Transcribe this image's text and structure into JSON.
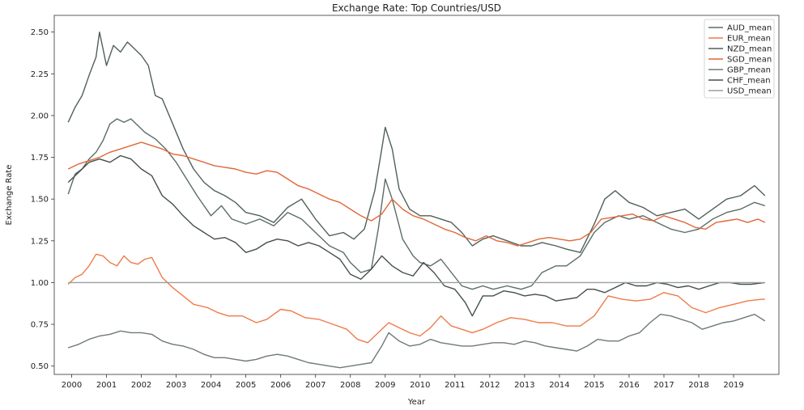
{
  "chart_data": {
    "type": "line",
    "title": "Exchange Rate: Top Countries/USD",
    "xlabel": "Year",
    "ylabel": "Exchange Rate",
    "xlim": [
      1999.5,
      2020.3
    ],
    "ylim": [
      0.45,
      2.6
    ],
    "xticks": [
      "2000",
      "2001",
      "2002",
      "2003",
      "2004",
      "2005",
      "2006",
      "2007",
      "2008",
      "2009",
      "2010",
      "2011",
      "2012",
      "2013",
      "2014",
      "2015",
      "2016",
      "2017",
      "2018",
      "2019"
    ],
    "yticks": [
      "0.50",
      "0.75",
      "1.00",
      "1.25",
      "1.50",
      "1.75",
      "2.00",
      "2.25",
      "2.50"
    ],
    "grid": false,
    "legend_position": "top-right",
    "series": [
      {
        "name": "AUD_mean",
        "color": "#5a6e66",
        "x": [
          1999.9,
          2000.1,
          2000.3,
          2000.5,
          2000.7,
          2000.9,
          2001.1,
          2001.3,
          2001.5,
          2001.7,
          2001.9,
          2002.1,
          2002.4,
          2002.7,
          2003.0,
          2003.3,
          2003.6,
          2004.0,
          2004.3,
          2004.6,
          2005.0,
          2005.4,
          2005.8,
          2006.2,
          2006.6,
          2007.0,
          2007.4,
          2007.8,
          2008.0,
          2008.3,
          2008.6,
          2008.8,
          2009.0,
          2009.2,
          2009.5,
          2009.8,
          2010.0,
          2010.3,
          2010.6,
          2010.9,
          2011.2,
          2011.5,
          2011.8,
          2012.1,
          2012.5,
          2012.9,
          2013.2,
          2013.5,
          2013.9,
          2014.2,
          2014.6,
          2015.0,
          2015.3,
          2015.7,
          2016.0,
          2016.4,
          2016.8,
          2017.2,
          2017.6,
          2018.0,
          2018.4,
          2018.8,
          2019.2,
          2019.6,
          2019.9
        ],
        "values": [
          1.53,
          1.65,
          1.68,
          1.74,
          1.78,
          1.85,
          1.95,
          1.98,
          1.96,
          1.98,
          1.94,
          1.9,
          1.86,
          1.8,
          1.72,
          1.62,
          1.52,
          1.4,
          1.46,
          1.38,
          1.35,
          1.38,
          1.34,
          1.42,
          1.38,
          1.3,
          1.22,
          1.18,
          1.12,
          1.06,
          1.08,
          1.32,
          1.62,
          1.5,
          1.26,
          1.16,
          1.12,
          1.1,
          1.14,
          1.06,
          0.98,
          0.96,
          0.98,
          0.96,
          0.98,
          0.96,
          0.98,
          1.06,
          1.1,
          1.1,
          1.16,
          1.3,
          1.36,
          1.4,
          1.38,
          1.4,
          1.36,
          1.32,
          1.3,
          1.32,
          1.38,
          1.42,
          1.44,
          1.48,
          1.46
        ]
      },
      {
        "name": "EUR_mean",
        "color": "#ee7b4a",
        "x": [
          1999.9,
          2000.1,
          2000.3,
          2000.5,
          2000.7,
          2000.9,
          2001.1,
          2001.3,
          2001.5,
          2001.7,
          2001.9,
          2002.1,
          2002.3,
          2002.6,
          2002.9,
          2003.2,
          2003.5,
          2003.9,
          2004.2,
          2004.5,
          2004.9,
          2005.3,
          2005.6,
          2006.0,
          2006.3,
          2006.7,
          2007.1,
          2007.5,
          2007.9,
          2008.2,
          2008.5,
          2008.8,
          2009.1,
          2009.4,
          2009.7,
          2010.0,
          2010.3,
          2010.6,
          2010.9,
          2011.2,
          2011.5,
          2011.8,
          2012.2,
          2012.6,
          2013.0,
          2013.4,
          2013.8,
          2014.2,
          2014.6,
          2015.0,
          2015.4,
          2015.8,
          2016.2,
          2016.6,
          2017.0,
          2017.4,
          2017.8,
          2018.2,
          2018.6,
          2019.0,
          2019.4,
          2019.8,
          2019.9
        ],
        "values": [
          0.99,
          1.03,
          1.05,
          1.1,
          1.17,
          1.16,
          1.12,
          1.1,
          1.16,
          1.12,
          1.11,
          1.14,
          1.15,
          1.03,
          0.97,
          0.92,
          0.87,
          0.85,
          0.82,
          0.8,
          0.8,
          0.76,
          0.78,
          0.84,
          0.83,
          0.79,
          0.78,
          0.75,
          0.72,
          0.66,
          0.64,
          0.7,
          0.76,
          0.73,
          0.7,
          0.68,
          0.73,
          0.8,
          0.74,
          0.72,
          0.7,
          0.72,
          0.76,
          0.79,
          0.78,
          0.76,
          0.76,
          0.74,
          0.74,
          0.8,
          0.92,
          0.9,
          0.89,
          0.9,
          0.94,
          0.92,
          0.85,
          0.82,
          0.85,
          0.87,
          0.89,
          0.9,
          0.9
        ]
      },
      {
        "name": "NZD_mean",
        "color": "#50605a",
        "x": [
          1999.9,
          2000.1,
          2000.3,
          2000.5,
          2000.7,
          2000.8,
          2001.0,
          2001.2,
          2001.4,
          2001.6,
          2001.8,
          2002.0,
          2002.2,
          2002.4,
          2002.6,
          2002.9,
          2003.2,
          2003.5,
          2003.8,
          2004.1,
          2004.4,
          2004.7,
          2005.0,
          2005.4,
          2005.8,
          2006.2,
          2006.6,
          2007.0,
          2007.4,
          2007.8,
          2008.1,
          2008.4,
          2008.7,
          2008.9,
          2009.0,
          2009.2,
          2009.4,
          2009.7,
          2010.0,
          2010.3,
          2010.6,
          2010.9,
          2011.2,
          2011.5,
          2011.8,
          2012.1,
          2012.5,
          2012.9,
          2013.2,
          2013.5,
          2013.9,
          2014.2,
          2014.6,
          2015.0,
          2015.3,
          2015.6,
          2016.0,
          2016.4,
          2016.8,
          2017.2,
          2017.6,
          2018.0,
          2018.4,
          2018.8,
          2019.2,
          2019.6,
          2019.9
        ],
        "values": [
          1.96,
          2.05,
          2.12,
          2.24,
          2.35,
          2.5,
          2.3,
          2.42,
          2.38,
          2.44,
          2.4,
          2.36,
          2.3,
          2.12,
          2.1,
          1.95,
          1.8,
          1.68,
          1.6,
          1.55,
          1.52,
          1.48,
          1.42,
          1.4,
          1.36,
          1.45,
          1.5,
          1.38,
          1.28,
          1.3,
          1.26,
          1.32,
          1.55,
          1.8,
          1.93,
          1.8,
          1.56,
          1.44,
          1.4,
          1.4,
          1.38,
          1.36,
          1.3,
          1.22,
          1.26,
          1.28,
          1.25,
          1.22,
          1.22,
          1.24,
          1.22,
          1.2,
          1.18,
          1.35,
          1.5,
          1.55,
          1.48,
          1.45,
          1.4,
          1.42,
          1.44,
          1.38,
          1.44,
          1.5,
          1.52,
          1.58,
          1.52
        ]
      },
      {
        "name": "SGD_mean",
        "color": "#e0673a",
        "x": [
          1999.9,
          2000.2,
          2000.5,
          2000.8,
          2001.1,
          2001.4,
          2001.7,
          2002.0,
          2002.3,
          2002.6,
          2002.9,
          2003.2,
          2003.5,
          2003.8,
          2004.1,
          2004.4,
          2004.7,
          2005.0,
          2005.3,
          2005.6,
          2005.9,
          2006.2,
          2006.5,
          2006.8,
          2007.1,
          2007.4,
          2007.7,
          2008.0,
          2008.3,
          2008.6,
          2008.9,
          2009.2,
          2009.5,
          2009.8,
          2010.1,
          2010.4,
          2010.7,
          2011.0,
          2011.3,
          2011.6,
          2011.9,
          2012.2,
          2012.5,
          2012.8,
          2013.1,
          2013.4,
          2013.7,
          2014.0,
          2014.3,
          2014.6,
          2014.9,
          2015.2,
          2015.5,
          2015.8,
          2016.1,
          2016.4,
          2016.7,
          2017.0,
          2017.3,
          2017.6,
          2017.9,
          2018.2,
          2018.5,
          2018.8,
          2019.1,
          2019.4,
          2019.7,
          2019.9
        ],
        "values": [
          1.68,
          1.71,
          1.73,
          1.75,
          1.78,
          1.8,
          1.82,
          1.84,
          1.82,
          1.8,
          1.77,
          1.76,
          1.74,
          1.72,
          1.7,
          1.69,
          1.68,
          1.66,
          1.65,
          1.67,
          1.66,
          1.62,
          1.58,
          1.56,
          1.53,
          1.5,
          1.48,
          1.44,
          1.4,
          1.37,
          1.41,
          1.5,
          1.44,
          1.4,
          1.38,
          1.35,
          1.32,
          1.3,
          1.27,
          1.25,
          1.28,
          1.25,
          1.24,
          1.22,
          1.24,
          1.26,
          1.27,
          1.26,
          1.25,
          1.26,
          1.3,
          1.38,
          1.39,
          1.4,
          1.41,
          1.38,
          1.37,
          1.4,
          1.38,
          1.36,
          1.33,
          1.32,
          1.36,
          1.37,
          1.38,
          1.36,
          1.38,
          1.36
        ]
      },
      {
        "name": "GBP_mean",
        "color": "#6f7a76",
        "x": [
          1999.9,
          2000.2,
          2000.5,
          2000.8,
          2001.1,
          2001.4,
          2001.7,
          2002.0,
          2002.3,
          2002.6,
          2002.9,
          2003.2,
          2003.5,
          2003.8,
          2004.1,
          2004.4,
          2004.7,
          2005.0,
          2005.3,
          2005.6,
          2005.9,
          2006.2,
          2006.5,
          2006.8,
          2007.1,
          2007.4,
          2007.7,
          2008.0,
          2008.3,
          2008.6,
          2008.9,
          2009.1,
          2009.4,
          2009.7,
          2010.0,
          2010.3,
          2010.6,
          2010.9,
          2011.2,
          2011.5,
          2011.8,
          2012.1,
          2012.4,
          2012.7,
          2013.0,
          2013.3,
          2013.6,
          2013.9,
          2014.2,
          2014.5,
          2014.8,
          2015.1,
          2015.4,
          2015.7,
          2016.0,
          2016.3,
          2016.6,
          2016.9,
          2017.2,
          2017.5,
          2017.8,
          2018.1,
          2018.4,
          2018.7,
          2019.0,
          2019.3,
          2019.6,
          2019.9
        ],
        "values": [
          0.61,
          0.63,
          0.66,
          0.68,
          0.69,
          0.71,
          0.7,
          0.7,
          0.69,
          0.65,
          0.63,
          0.62,
          0.6,
          0.57,
          0.55,
          0.55,
          0.54,
          0.53,
          0.54,
          0.56,
          0.57,
          0.56,
          0.54,
          0.52,
          0.51,
          0.5,
          0.49,
          0.5,
          0.51,
          0.52,
          0.62,
          0.7,
          0.65,
          0.62,
          0.63,
          0.66,
          0.64,
          0.63,
          0.62,
          0.62,
          0.63,
          0.64,
          0.64,
          0.63,
          0.65,
          0.64,
          0.62,
          0.61,
          0.6,
          0.59,
          0.62,
          0.66,
          0.65,
          0.65,
          0.68,
          0.7,
          0.76,
          0.81,
          0.8,
          0.78,
          0.76,
          0.72,
          0.74,
          0.76,
          0.77,
          0.79,
          0.81,
          0.77
        ]
      },
      {
        "name": "CHF_mean",
        "color": "#454f4b",
        "x": [
          1999.9,
          2000.2,
          2000.5,
          2000.8,
          2001.1,
          2001.4,
          2001.7,
          2002.0,
          2002.3,
          2002.6,
          2002.9,
          2003.2,
          2003.5,
          2003.8,
          2004.1,
          2004.4,
          2004.7,
          2005.0,
          2005.3,
          2005.6,
          2005.9,
          2006.2,
          2006.5,
          2006.8,
          2007.1,
          2007.4,
          2007.7,
          2008.0,
          2008.3,
          2008.6,
          2008.9,
          2009.2,
          2009.5,
          2009.8,
          2010.1,
          2010.4,
          2010.7,
          2011.0,
          2011.3,
          2011.5,
          2011.8,
          2012.1,
          2012.4,
          2012.7,
          2013.0,
          2013.3,
          2013.6,
          2013.9,
          2014.2,
          2014.5,
          2014.8,
          2015.0,
          2015.3,
          2015.6,
          2015.9,
          2016.2,
          2016.5,
          2016.8,
          2017.1,
          2017.4,
          2017.7,
          2018.0,
          2018.3,
          2018.6,
          2018.9,
          2019.2,
          2019.5,
          2019.9
        ],
        "values": [
          1.6,
          1.66,
          1.72,
          1.74,
          1.72,
          1.76,
          1.74,
          1.68,
          1.64,
          1.52,
          1.47,
          1.4,
          1.34,
          1.3,
          1.26,
          1.27,
          1.24,
          1.18,
          1.2,
          1.24,
          1.26,
          1.25,
          1.22,
          1.24,
          1.22,
          1.18,
          1.14,
          1.05,
          1.02,
          1.08,
          1.16,
          1.1,
          1.06,
          1.04,
          1.12,
          1.06,
          0.98,
          0.96,
          0.88,
          0.8,
          0.92,
          0.92,
          0.95,
          0.94,
          0.92,
          0.93,
          0.92,
          0.89,
          0.9,
          0.91,
          0.96,
          0.96,
          0.94,
          0.97,
          1.0,
          0.98,
          0.98,
          1.0,
          0.99,
          0.97,
          0.98,
          0.96,
          0.98,
          1.0,
          1.0,
          0.99,
          0.99,
          1.0
        ]
      },
      {
        "name": "USD_mean",
        "color": "#9aa09e",
        "x": [
          1999.9,
          2019.9
        ],
        "values": [
          1.0,
          1.0
        ]
      }
    ]
  }
}
